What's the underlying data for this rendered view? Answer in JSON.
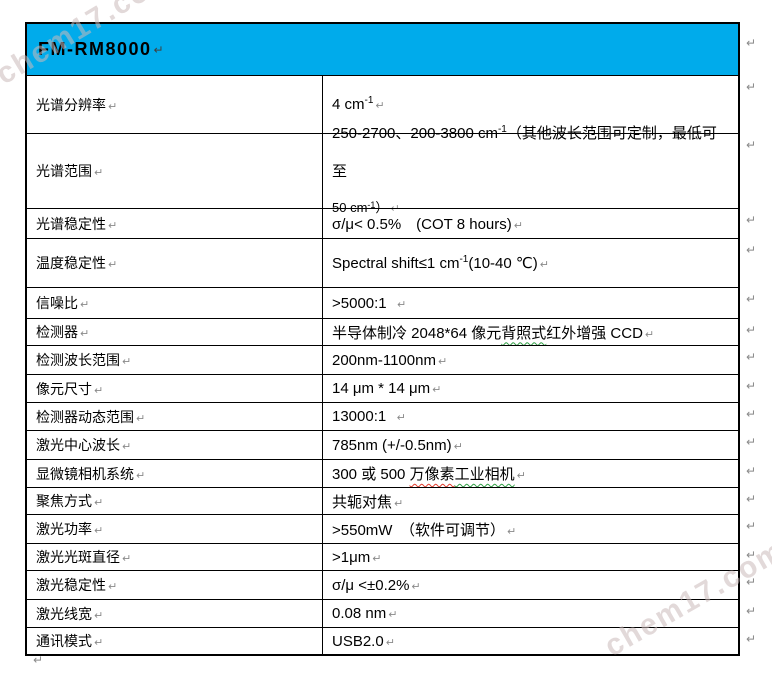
{
  "colors": {
    "header_bg": "#00ABEB",
    "border": "#000000",
    "mark_gray": "#8a8a8a",
    "wavy_red": "#e03a2a",
    "wavy_green": "#2f9e44",
    "watermark": "rgba(203,186,186,0.55)"
  },
  "marks": {
    "pilcrow": "↵"
  },
  "watermarks": [
    {
      "text": "chem17.com",
      "position": "top-left"
    },
    {
      "text": "chem17.com",
      "position": "bottom-right"
    }
  ],
  "table": {
    "title": "FM-RM8000",
    "rows": [
      {
        "label": "光谱分辨率",
        "h": 58,
        "value": [
          {
            "text": "4 cm"
          },
          {
            "text": "-1",
            "sup": true
          }
        ]
      },
      {
        "label": "光谱范围",
        "h": 75,
        "lh": 36,
        "value": [
          {
            "text": "250-2700、200-3800 cm"
          },
          {
            "text": "-1",
            "sup": true
          },
          {
            "text": "（其他波长范围可定制，最低可至"
          },
          {
            "br": true
          },
          {
            "text": "50 cm",
            "small": true
          },
          {
            "text": "-1",
            "sup": true,
            "small": true
          },
          {
            "text": "）",
            "small": true
          }
        ]
      },
      {
        "label": "光谱稳定性",
        "h": 30,
        "value": [
          {
            "text": "σ/μ< 0.5%　(COT 8 hours)"
          }
        ]
      },
      {
        "label": "温度稳定性",
        "h": 49,
        "value": [
          {
            "text": "Spectral shift≤1 cm"
          },
          {
            "text": "-1",
            "sup": true
          },
          {
            "text": "(10-40 ℃)"
          }
        ]
      },
      {
        "label": "信噪比",
        "h": 31,
        "value": [
          {
            "text": ">5000:1  "
          }
        ]
      },
      {
        "label": "检测器",
        "h": 27,
        "value": [
          {
            "text": "半导体制冷 2048*64 像元"
          },
          {
            "text": "背照式",
            "wavy": "green"
          },
          {
            "text": "红外增强 CCD"
          }
        ]
      },
      {
        "label": "检测波长范围",
        "h": 29,
        "value": [
          {
            "text": "200nm-1100nm"
          }
        ]
      },
      {
        "label": "像元尺寸",
        "h": 28,
        "value": [
          {
            "text": "14 μm * 14 μm"
          }
        ]
      },
      {
        "label": "检测器动态范围",
        "h": 28,
        "value": [
          {
            "text": "13000:1  "
          }
        ]
      },
      {
        "label": "激光中心波长",
        "h": 29,
        "value": [
          {
            "text": "785nm (+/-0.5nm)"
          }
        ]
      },
      {
        "label": "显微镜相机系统",
        "h": 28,
        "value": [
          {
            "text": "300 或 500 "
          },
          {
            "text": "万像素",
            "wavy": "red"
          },
          {
            "text": "工业相机",
            "wavy": "green"
          }
        ]
      },
      {
        "label": "聚焦方式",
        "h": 27,
        "value": [
          {
            "text": "共轭对焦"
          }
        ]
      },
      {
        "label": "激光功率",
        "h": 29,
        "value": [
          {
            "text": ">550mW　（软件可调节）"
          }
        ]
      },
      {
        "label": "激光光斑直径",
        "h": 27,
        "value": [
          {
            "text": ">1μm"
          }
        ]
      },
      {
        "label": "激光稳定性",
        "h": 29,
        "value": [
          {
            "text": "σ/μ <±0.2%"
          }
        ]
      },
      {
        "label": "激光线宽",
        "h": 28,
        "value": [
          {
            "text": "0.08 nm"
          }
        ]
      },
      {
        "label": "通讯模式",
        "h": 27,
        "value": [
          {
            "text": "USB2.0"
          }
        ]
      }
    ]
  }
}
